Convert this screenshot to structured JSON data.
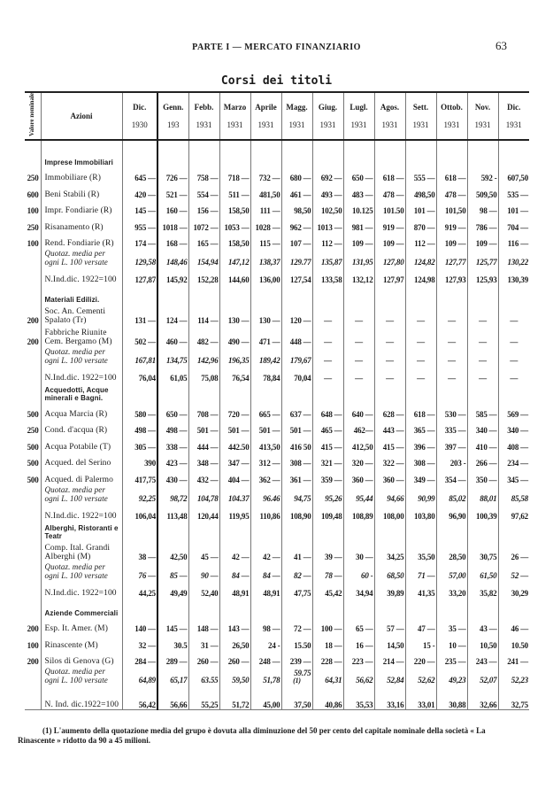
{
  "page": {
    "running_head": "PARTE I — MERCATO FINANZIARIO",
    "page_number": "63",
    "title": "Corsi dei titoli"
  },
  "table": {
    "headers": {
      "valore": "Valore nominale",
      "azioni": "Azioni",
      "months": [
        {
          "m": "Dic.",
          "y": "1930"
        },
        {
          "m": "Genn.",
          "y": "193"
        },
        {
          "m": "Febb.",
          "y": "1931"
        },
        {
          "m": "Marzo",
          "y": "1931"
        },
        {
          "m": "Aprile",
          "y": "1931"
        },
        {
          "m": "Magg.",
          "y": "1931"
        },
        {
          "m": "Giug.",
          "y": "1931"
        },
        {
          "m": "Lugl.",
          "y": "1931"
        },
        {
          "m": "Agos.",
          "y": "1931"
        },
        {
          "m": "Sett.",
          "y": "1931"
        },
        {
          "m": "Ottob.",
          "y": "1931"
        },
        {
          "m": "Nov.",
          "y": "1931"
        },
        {
          "m": "Dic.",
          "y": "1931"
        }
      ]
    },
    "rows": [
      {
        "type": "group",
        "name": "Imprese Immobiliari"
      },
      {
        "type": "data",
        "vn": "250",
        "name": "Immobiliare (R)",
        "values": [
          "645 —",
          "726 —",
          "758 —",
          "718 —",
          "732 —",
          "680 —",
          "692 —",
          "650 —",
          "618 —",
          "555 —",
          "618 —",
          "592 -",
          "607,50"
        ]
      },
      {
        "type": "data",
        "vn": "600",
        "name": "Beni Stabili (R)",
        "values": [
          "420 —",
          "521 —",
          "554 —",
          "511 —",
          "481,50",
          "461 —",
          "493 —",
          "483 —",
          "478 —",
          "498,50",
          "478 —",
          "509,50",
          "535 —"
        ]
      },
      {
        "type": "data",
        "vn": "100",
        "name": "Impr. Fondiarie (R)",
        "values": [
          "145 —",
          "160 —",
          "156 —",
          "158,50",
          "111 —",
          "98,50",
          "102,50",
          "10.125",
          "101.50",
          "101 —",
          "101,50",
          "98 —",
          "101 —"
        ]
      },
      {
        "type": "data",
        "vn": "250",
        "name": "Risanamento (R)",
        "values": [
          "955 —",
          "1018 —",
          "1072 —",
          "1053 —",
          "1028 —",
          "962 —",
          "1013 —",
          "981 —",
          "919 —",
          "870 —",
          "919 —",
          "786 —",
          "704 —"
        ]
      },
      {
        "type": "data",
        "vn": "100",
        "name": "Rend. Fondiarie (R)",
        "values": [
          "174 —",
          "168 —",
          "165 —",
          "158,50",
          "115 —",
          "107 —",
          "112 —",
          "109 —",
          "109 —",
          "112 —",
          "109 —",
          "109 —",
          "116 —"
        ]
      },
      {
        "type": "quot",
        "name": "Quotaz. media per ogni L. 100 versate",
        "values": [
          "129,58",
          "148,46",
          "154,94",
          "147,12",
          "138,37",
          "129.77",
          "135,87",
          "131,95",
          "127,80",
          "124,82",
          "127,77",
          "125,77",
          "130,22"
        ]
      },
      {
        "type": "index",
        "name": "N.Ind.dic. 1922=100",
        "values": [
          "127,87",
          "145,92",
          "152,28",
          "144,60",
          "136,00",
          "127,54",
          "133,58",
          "132,12",
          "127,97",
          "124,98",
          "127,93",
          "125,93",
          "130,39"
        ]
      },
      {
        "type": "group",
        "name": "Materiali Edilizi."
      },
      {
        "type": "data",
        "vn": "200",
        "name": "Soc. An. Cementi Spalato (Tr)",
        "values": [
          "131 —",
          "124 —",
          "114 —",
          "130 —",
          "130 —",
          "120 —",
          "—",
          "—",
          "—",
          "—",
          "—",
          "—",
          "—"
        ]
      },
      {
        "type": "data",
        "vn": "200",
        "name": "Fabbriche Riunite Cem. Bergamo (M)",
        "values": [
          "502 —",
          "460 —",
          "482 —",
          "490 —",
          "471 —",
          "448 —",
          "—",
          "—",
          "—",
          "—",
          "—",
          "—",
          "—"
        ]
      },
      {
        "type": "quot",
        "name": "Quotaz. media per ogni L. 100 versate",
        "values": [
          "167,81",
          "134,75",
          "142,96",
          "196,35",
          "189,42",
          "179,67",
          "—",
          "—",
          "—",
          "—",
          "—",
          "—",
          "—"
        ]
      },
      {
        "type": "index",
        "name": "N.Ind.dic. 1922=100",
        "values": [
          "76,04",
          "61,05",
          "75,08",
          "76,54",
          "78,84",
          "70,04",
          "—",
          "—",
          "—",
          "—",
          "—",
          "—",
          "—"
        ]
      },
      {
        "type": "group",
        "name": "Acquedotti, Acque minerali e Bagni."
      },
      {
        "type": "data",
        "vn": "500",
        "name": "Acqua Marcia (R)",
        "values": [
          "580 —",
          "650 —",
          "708 —",
          "720 —",
          "665 —",
          "637 —",
          "648 —",
          "640 —",
          "628 —",
          "618 —",
          "530 —",
          "585 —",
          "569 —"
        ]
      },
      {
        "type": "data",
        "vn": "250",
        "name": "Cond. d'acqua (R)",
        "values": [
          "498 —",
          "498 —",
          "501 —",
          "501 —",
          "501 —",
          "501 —",
          "465 —",
          "462—",
          "443 —",
          "365 —",
          "335 —",
          "340 —",
          "340 —"
        ]
      },
      {
        "type": "data",
        "vn": "500",
        "name": "Acqua Potabile (T)",
        "values": [
          "305 —",
          "338 —",
          "444 —",
          "442.50",
          "413,50",
          "416 50",
          "415 —",
          "412,50",
          "415 —",
          "396 —",
          "397 —",
          "410 —",
          "408 —"
        ]
      },
      {
        "type": "data",
        "vn": "500",
        "name": "Acqued. del Serino",
        "values": [
          "390",
          "423 —",
          "348 —",
          "347 —",
          "312 —",
          "308 —",
          "321 —",
          "320 —",
          "322 —",
          "308 —",
          "203 -",
          "266 —",
          "234 —"
        ]
      },
      {
        "type": "data",
        "vn": "500",
        "name": "Acqued. di Palermo",
        "values": [
          "417,75",
          "430 —",
          "432 —",
          "404 —",
          "362 —",
          "361 —",
          "359 —",
          "360 —",
          "360 —",
          "349 —",
          "354 —",
          "350 —",
          "345 —"
        ]
      },
      {
        "type": "quot",
        "name": "Quotaz. media per ogni L. 100 versate",
        "values": [
          "92,25",
          "98,72",
          "104,78",
          "104.37",
          "96.46",
          "94,75",
          "95,26",
          "95,44",
          "94,66",
          "90,99",
          "85,02",
          "88,01",
          "85,58"
        ]
      },
      {
        "type": "index",
        "name": "N.Ind.dic. 1922=100",
        "values": [
          "106,04",
          "113,48",
          "120,44",
          "119,95",
          "110,86",
          "108,90",
          "109,48",
          "108,89",
          "108,00",
          "103,80",
          "96,90",
          "100,39",
          "97,62"
        ]
      },
      {
        "type": "group",
        "name": "Alberghi, Ristoranti e Teatr"
      },
      {
        "type": "data",
        "vn": "",
        "name": "Comp. Ital. Grandi Alberghi (M)",
        "values": [
          "38 —",
          "42,50",
          "45 —",
          "42 —",
          "42 —",
          "41 —",
          "39 —",
          "30 —",
          "34,25",
          "35,50",
          "28,50",
          "30,75",
          "26 —"
        ]
      },
      {
        "type": "quot",
        "name": "Quotaz. media per ogni L. 100 versate",
        "values": [
          "76 —",
          "85 —",
          "90 —",
          "84 —",
          "84 —",
          "82 —",
          "78 —",
          "60 -",
          "68,50",
          "71 —",
          "57,00",
          "61,50",
          "52 —"
        ]
      },
      {
        "type": "index",
        "name": "N.Ind.dic. 1922=100",
        "values": [
          "44,25",
          "49,49",
          "52,40",
          "48,91",
          "48,91",
          "47,75",
          "45,42",
          "34,94",
          "39,89",
          "41,35",
          "33,20",
          "35,82",
          "30,29"
        ]
      },
      {
        "type": "group",
        "name": "Aziende Commerciali"
      },
      {
        "type": "data",
        "vn": "200",
        "name": "Esp. It. Amer. (M)",
        "values": [
          "140 —",
          "145 —",
          "148 —",
          "143 —",
          "98 —",
          "72 —",
          "100 —",
          "65 —",
          "57 —",
          "47 —",
          "35 —",
          "43 —",
          "46 —"
        ]
      },
      {
        "type": "data",
        "vn": "100",
        "name": "Rinascente (M)",
        "values": [
          "32 —",
          "30.5",
          "31 —",
          "26,50",
          "24 -",
          "15.50",
          "18 —",
          "16 —",
          "14,50",
          "15 -",
          "10 —",
          "10,50",
          "10.50"
        ]
      },
      {
        "type": "data",
        "vn": "200",
        "name": "Silos di Genova (G)",
        "values": [
          "284 —",
          "289 —",
          "260 —",
          "260 —",
          "248 —",
          "239 —",
          "228 —",
          "223 —",
          "214 —",
          "220 —",
          "235 —",
          "243 —",
          "241 —"
        ]
      },
      {
        "type": "quot",
        "name": "Quotaz. media per ogni L. 100 versate",
        "values": [
          "64,89",
          "65,17",
          "63.55",
          "59,50",
          "51,78",
          "59.75",
          "64,31",
          "56,62",
          "52,84",
          "52,62",
          "49,23",
          "52,07",
          "52,23"
        ],
        "notes": {
          "5": "(1)"
        }
      },
      {
        "type": "index",
        "name": "N. Ind. dic.1922=100",
        "values": [
          "56,42",
          "56,66",
          "55,25",
          "51,72",
          "45,00",
          "37,50",
          "40,86",
          "35,53",
          "33,16",
          "33,01",
          "30,88",
          "32,66",
          "32,75"
        ]
      }
    ]
  },
  "footnote": "(1) L'aumento della quotazione media del grupo è dovuta alla diminuzione del 50 per cento del capitale nominale della società « La Rinascente » ridotto da 90 a 45 milioni."
}
